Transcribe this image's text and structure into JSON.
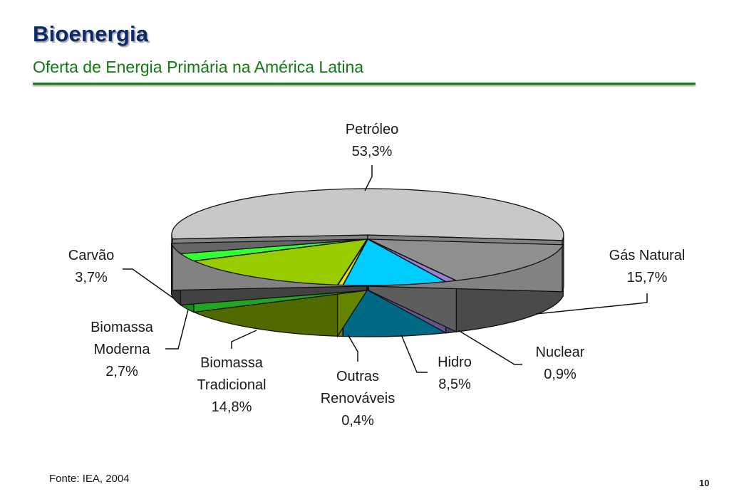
{
  "slide": {
    "title": "Bioenergia",
    "subtitle": "Oferta de Energia Primária na América Latina",
    "source": "Fonte: IEA, 2004",
    "page_number": "10"
  },
  "colors": {
    "title": "#0c2a6b",
    "subtitle": "#0f7a0f",
    "rule": "#1b7d1b"
  },
  "chart_data": {
    "type": "pie",
    "style": "3d-exploded",
    "unit": "%",
    "slices": [
      {
        "name": "Petróleo",
        "value": 53.3,
        "label": "53,3%",
        "color": "#c8c8c8"
      },
      {
        "name": "Gás Natural",
        "value": 15.7,
        "label": "15,7%",
        "color": "#8f8f8f"
      },
      {
        "name": "Nuclear",
        "value": 0.9,
        "label": "0,9%",
        "color": "#9b7fd0"
      },
      {
        "name": "Hidro",
        "value": 8.5,
        "label": "8,5%",
        "color": "#00ccff"
      },
      {
        "name": "Outras Renováveis",
        "value": 0.4,
        "label": "0,4%",
        "color": "#e6e600"
      },
      {
        "name": "Biomassa Tradicional",
        "value": 14.8,
        "label": "14,8%",
        "color": "#99cc00"
      },
      {
        "name": "Biomassa Moderna",
        "value": 2.7,
        "label": "2,7%",
        "color": "#33ff33"
      },
      {
        "name": "Carvão",
        "value": 3.7,
        "label": "3,7%",
        "color": "#666666"
      }
    ]
  }
}
